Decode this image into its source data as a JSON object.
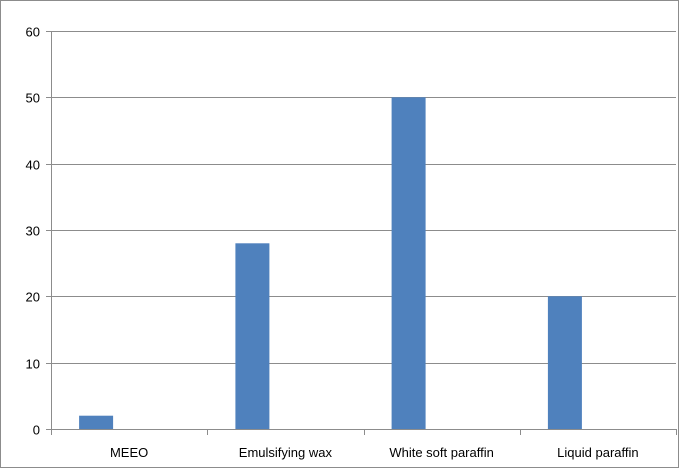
{
  "chart_data": {
    "type": "bar",
    "title": "",
    "xlabel": "",
    "ylabel": "",
    "categories": [
      "MEEO",
      "Emulsifying wax",
      "White soft paraffin",
      "Liquid paraffin"
    ],
    "series": [
      {
        "values": [
          2,
          28,
          50,
          20
        ]
      }
    ],
    "ylim": [
      0,
      60
    ],
    "yticks": [
      0,
      10,
      20,
      30,
      40,
      50,
      60
    ],
    "ytick_labels": [
      "0",
      "10",
      "20",
      "30",
      "40",
      "50",
      "60"
    ],
    "grid": true,
    "legend": "none",
    "colors": {
      "bar": "#4f81bd",
      "grid": "#8c8c8c",
      "text": "#000000"
    }
  }
}
